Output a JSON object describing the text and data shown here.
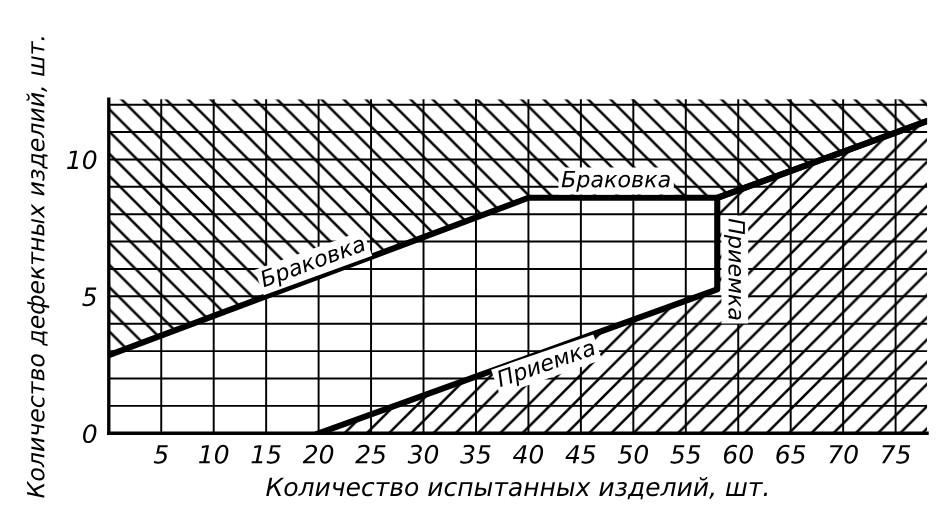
{
  "chart_data": {
    "type": "line",
    "xlabel": "Количество испытанных изделий, шт.",
    "ylabel": "Количество дефектных изделий, шт.",
    "xlim": [
      0,
      78
    ],
    "ylim": [
      0,
      12.2
    ],
    "xticks": [
      5,
      10,
      15,
      20,
      25,
      30,
      35,
      40,
      45,
      50,
      55,
      60,
      65,
      70,
      75
    ],
    "yticks": [
      0,
      {
        "value": 1,
        "label": null
      },
      {
        "value": 2,
        "label": null
      },
      {
        "value": 3,
        "label": null
      },
      {
        "value": 4,
        "label": null
      },
      5,
      {
        "value": 6,
        "label": null
      },
      {
        "value": 7,
        "label": null
      },
      {
        "value": 8,
        "label": null
      },
      {
        "value": 9,
        "label": null
      },
      10,
      {
        "value": 11,
        "label": null
      },
      {
        "value": 12,
        "label": null
      }
    ],
    "grid": true,
    "marker": "none",
    "line_style": "solid",
    "series": [
      {
        "color": "#000000",
        "x": [
          0,
          40,
          58,
          78
        ],
        "values": [
          2.85,
          8.6,
          8.6,
          11.4
        ],
        "lower": [
          2.85,
          8.6,
          8.6,
          11.4
        ],
        "upper": [
          12.2,
          12.2,
          12.2,
          12.2
        ]
      },
      {
        "type": "area",
        "color": "#000000",
        "x": [
          20,
          58,
          58,
          78
        ],
        "values": [
          0,
          5.25,
          8.6,
          11.4
        ]
      }
    ],
    "annotations": [
      "Браковка",
      "Браковка",
      "Приемка",
      "Приемка"
    ]
  }
}
